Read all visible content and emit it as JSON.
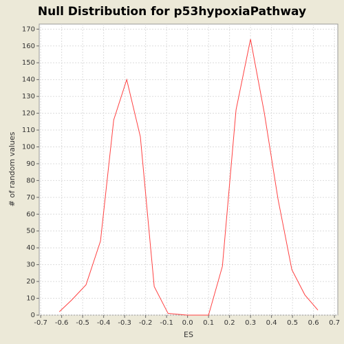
{
  "chart_data": {
    "type": "line",
    "title": "Null Distribution for p53hypoxiaPathway",
    "x_label": "ES",
    "y_label": "# of random values",
    "x": [
      -0.611,
      -0.552,
      -0.484,
      -0.415,
      -0.352,
      -0.29,
      -0.225,
      -0.159,
      -0.093,
      -0.002,
      0.1,
      0.166,
      0.231,
      0.3,
      0.366,
      0.431,
      0.497,
      0.559,
      0.621
    ],
    "series": [
      {
        "color": "#ff4040",
        "values": [
          2,
          9,
          18,
          44,
          116,
          140,
          106,
          17,
          1,
          0,
          0,
          29,
          122,
          164,
          120,
          69,
          27,
          12,
          3
        ]
      }
    ],
    "xlim": [
      -0.707,
      0.716
    ],
    "ylim": [
      0,
      173
    ],
    "xticks": [
      -0.7,
      -0.6,
      -0.5,
      -0.4,
      -0.3,
      -0.2,
      -0.1,
      {
        "value": 0,
        "label": "0.0"
      },
      0.1,
      0.2,
      0.3,
      0.4,
      0.5,
      0.6,
      0.7
    ],
    "yticks": [
      0,
      10,
      20,
      30,
      40,
      50,
      60,
      70,
      80,
      90,
      100,
      110,
      120,
      130,
      140,
      150,
      160,
      170
    ],
    "grid": true
  }
}
